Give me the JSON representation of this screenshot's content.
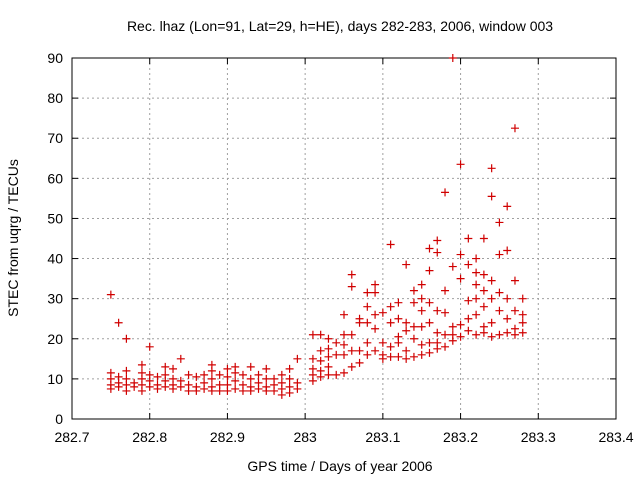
{
  "chart_data": {
    "type": "scatter",
    "title": "Rec. lhaz (Lon=91, Lat=29, h=HE), days 282-283, 2006, window 003",
    "xlabel": "GPS time / Days of year 2006",
    "ylabel": "STEC from uqrg / TECUs",
    "xlim": [
      282.7,
      283.4
    ],
    "ylim": [
      0,
      90
    ],
    "xticks": [
      "282.7",
      "282.8",
      "282.9",
      "283",
      "283.1",
      "283.2",
      "283.3",
      "283.4"
    ],
    "yticks": [
      "0",
      "10",
      "20",
      "30",
      "40",
      "50",
      "60",
      "70",
      "80",
      "90"
    ],
    "grid": true,
    "marker": "plus",
    "color": "#d00000",
    "series": [
      {
        "points": [
          [
            282.75,
            31
          ],
          [
            282.75,
            11.5
          ],
          [
            282.75,
            10
          ],
          [
            282.75,
            8.5
          ],
          [
            282.75,
            7.5
          ],
          [
            282.76,
            24
          ],
          [
            282.76,
            10.5
          ],
          [
            282.76,
            9
          ],
          [
            282.76,
            8
          ],
          [
            282.77,
            20
          ],
          [
            282.77,
            12
          ],
          [
            282.77,
            10
          ],
          [
            282.77,
            8.5
          ],
          [
            282.77,
            7
          ],
          [
            282.78,
            9
          ],
          [
            282.78,
            8
          ],
          [
            282.79,
            13.5
          ],
          [
            282.79,
            11.5
          ],
          [
            282.79,
            10
          ],
          [
            282.79,
            8.5
          ],
          [
            282.79,
            7
          ],
          [
            282.8,
            18
          ],
          [
            282.8,
            11
          ],
          [
            282.8,
            9.5
          ],
          [
            282.8,
            8
          ],
          [
            282.81,
            10.5
          ],
          [
            282.81,
            8.5
          ],
          [
            282.81,
            7.5
          ],
          [
            282.82,
            13
          ],
          [
            282.82,
            11
          ],
          [
            282.82,
            9.5
          ],
          [
            282.82,
            8
          ],
          [
            282.83,
            12.5
          ],
          [
            282.83,
            10
          ],
          [
            282.83,
            8.5
          ],
          [
            282.83,
            7.5
          ],
          [
            282.84,
            15
          ],
          [
            282.84,
            9.5
          ],
          [
            282.84,
            8
          ],
          [
            282.85,
            11
          ],
          [
            282.85,
            8.5
          ],
          [
            282.85,
            7
          ],
          [
            282.86,
            10.5
          ],
          [
            282.86,
            8
          ],
          [
            282.86,
            7
          ],
          [
            282.87,
            11
          ],
          [
            282.87,
            9
          ],
          [
            282.87,
            7.5
          ],
          [
            282.88,
            13.5
          ],
          [
            282.88,
            12
          ],
          [
            282.88,
            10
          ],
          [
            282.88,
            8
          ],
          [
            282.88,
            7
          ],
          [
            282.89,
            11
          ],
          [
            282.89,
            8.5
          ],
          [
            282.89,
            7
          ],
          [
            282.9,
            12.5
          ],
          [
            282.9,
            10.5
          ],
          [
            282.9,
            8.5
          ],
          [
            282.9,
            7
          ],
          [
            282.91,
            13
          ],
          [
            282.91,
            11.5
          ],
          [
            282.91,
            9.5
          ],
          [
            282.91,
            7.5
          ],
          [
            282.92,
            11
          ],
          [
            282.92,
            8.5
          ],
          [
            282.92,
            7
          ],
          [
            282.93,
            13
          ],
          [
            282.93,
            10
          ],
          [
            282.93,
            8
          ],
          [
            282.93,
            7
          ],
          [
            282.94,
            11
          ],
          [
            282.94,
            9
          ],
          [
            282.94,
            7.5
          ],
          [
            282.95,
            12.5
          ],
          [
            282.95,
            10
          ],
          [
            282.95,
            8
          ],
          [
            282.95,
            7
          ],
          [
            282.96,
            10
          ],
          [
            282.96,
            8.5
          ],
          [
            282.96,
            7
          ],
          [
            282.97,
            11
          ],
          [
            282.97,
            9
          ],
          [
            282.97,
            7.5
          ],
          [
            282.97,
            6
          ],
          [
            282.98,
            12.5
          ],
          [
            282.98,
            10
          ],
          [
            282.98,
            8
          ],
          [
            282.98,
            6.5
          ],
          [
            282.99,
            15
          ],
          [
            282.99,
            9
          ],
          [
            282.99,
            7.5
          ],
          [
            283.01,
            21
          ],
          [
            283.01,
            15
          ],
          [
            283.01,
            12.5
          ],
          [
            283.01,
            11
          ],
          [
            283.01,
            9.5
          ],
          [
            283.02,
            21
          ],
          [
            283.02,
            17
          ],
          [
            283.02,
            14.5
          ],
          [
            283.02,
            12
          ],
          [
            283.02,
            10.5
          ],
          [
            283.03,
            20
          ],
          [
            283.03,
            17.5
          ],
          [
            283.03,
            15.5
          ],
          [
            283.03,
            13
          ],
          [
            283.03,
            11
          ],
          [
            283.04,
            19
          ],
          [
            283.04,
            16
          ],
          [
            283.04,
            11
          ],
          [
            283.05,
            26
          ],
          [
            283.05,
            21
          ],
          [
            283.05,
            18.5
          ],
          [
            283.05,
            16
          ],
          [
            283.05,
            11.5
          ],
          [
            283.06,
            36
          ],
          [
            283.06,
            33
          ],
          [
            283.06,
            21
          ],
          [
            283.06,
            17
          ],
          [
            283.06,
            13
          ],
          [
            283.07,
            25
          ],
          [
            283.07,
            24
          ],
          [
            283.07,
            17
          ],
          [
            283.07,
            14
          ],
          [
            283.08,
            31.5
          ],
          [
            283.08,
            28
          ],
          [
            283.08,
            24
          ],
          [
            283.08,
            19
          ],
          [
            283.08,
            16
          ],
          [
            283.09,
            33.5
          ],
          [
            283.09,
            31.5
          ],
          [
            283.09,
            26
          ],
          [
            283.09,
            22.5
          ],
          [
            283.09,
            17
          ],
          [
            283.1,
            26.5
          ],
          [
            283.1,
            19
          ],
          [
            283.1,
            16
          ],
          [
            283.1,
            15
          ],
          [
            283.11,
            43.5
          ],
          [
            283.11,
            28
          ],
          [
            283.11,
            24
          ],
          [
            283.11,
            18
          ],
          [
            283.11,
            15.5
          ],
          [
            283.12,
            29
          ],
          [
            283.12,
            25
          ],
          [
            283.12,
            20.5
          ],
          [
            283.12,
            19
          ],
          [
            283.12,
            15.5
          ],
          [
            283.13,
            38.5
          ],
          [
            283.13,
            24
          ],
          [
            283.13,
            22
          ],
          [
            283.13,
            17
          ],
          [
            283.13,
            15
          ],
          [
            283.14,
            32
          ],
          [
            283.14,
            29
          ],
          [
            283.14,
            23
          ],
          [
            283.14,
            20
          ],
          [
            283.14,
            15.5
          ],
          [
            283.15,
            33.5
          ],
          [
            283.15,
            30
          ],
          [
            283.15,
            27
          ],
          [
            283.15,
            23
          ],
          [
            283.15,
            18.5
          ],
          [
            283.15,
            16
          ],
          [
            283.16,
            42.5
          ],
          [
            283.16,
            37
          ],
          [
            283.16,
            29
          ],
          [
            283.16,
            24
          ],
          [
            283.16,
            19
          ],
          [
            283.16,
            16.5
          ],
          [
            283.17,
            44.5
          ],
          [
            283.17,
            41.5
          ],
          [
            283.17,
            27
          ],
          [
            283.17,
            21.5
          ],
          [
            283.17,
            19
          ],
          [
            283.17,
            17.5
          ],
          [
            283.18,
            56.5
          ],
          [
            283.18,
            32
          ],
          [
            283.18,
            26.5
          ],
          [
            283.18,
            21
          ],
          [
            283.18,
            18
          ],
          [
            283.19,
            90
          ],
          [
            283.19,
            38
          ],
          [
            283.19,
            23
          ],
          [
            283.19,
            21
          ],
          [
            283.19,
            19.5
          ],
          [
            283.2,
            63.5
          ],
          [
            283.2,
            41
          ],
          [
            283.2,
            35
          ],
          [
            283.2,
            23.5
          ],
          [
            283.2,
            20.5
          ],
          [
            283.21,
            45
          ],
          [
            283.21,
            38.5
          ],
          [
            283.21,
            29.5
          ],
          [
            283.21,
            25
          ],
          [
            283.21,
            22
          ],
          [
            283.22,
            40
          ],
          [
            283.22,
            36.5
          ],
          [
            283.22,
            33.5
          ],
          [
            283.22,
            30
          ],
          [
            283.22,
            26
          ],
          [
            283.22,
            21
          ],
          [
            283.23,
            45
          ],
          [
            283.23,
            36
          ],
          [
            283.23,
            32
          ],
          [
            283.23,
            28
          ],
          [
            283.23,
            23
          ],
          [
            283.23,
            21.5
          ],
          [
            283.24,
            62.5
          ],
          [
            283.24,
            55.5
          ],
          [
            283.24,
            34.5
          ],
          [
            283.24,
            30
          ],
          [
            283.24,
            24
          ],
          [
            283.24,
            20.5
          ],
          [
            283.25,
            49
          ],
          [
            283.25,
            41
          ],
          [
            283.25,
            31.5
          ],
          [
            283.25,
            27
          ],
          [
            283.25,
            21
          ],
          [
            283.26,
            53
          ],
          [
            283.26,
            42
          ],
          [
            283.26,
            30
          ],
          [
            283.26,
            25
          ],
          [
            283.26,
            21.5
          ],
          [
            283.27,
            72.5
          ],
          [
            283.27,
            34.5
          ],
          [
            283.27,
            27
          ],
          [
            283.27,
            22.5
          ],
          [
            283.27,
            21
          ],
          [
            283.28,
            30
          ],
          [
            283.28,
            26
          ],
          [
            283.28,
            24
          ],
          [
            283.28,
            21.5
          ]
        ]
      }
    ]
  }
}
